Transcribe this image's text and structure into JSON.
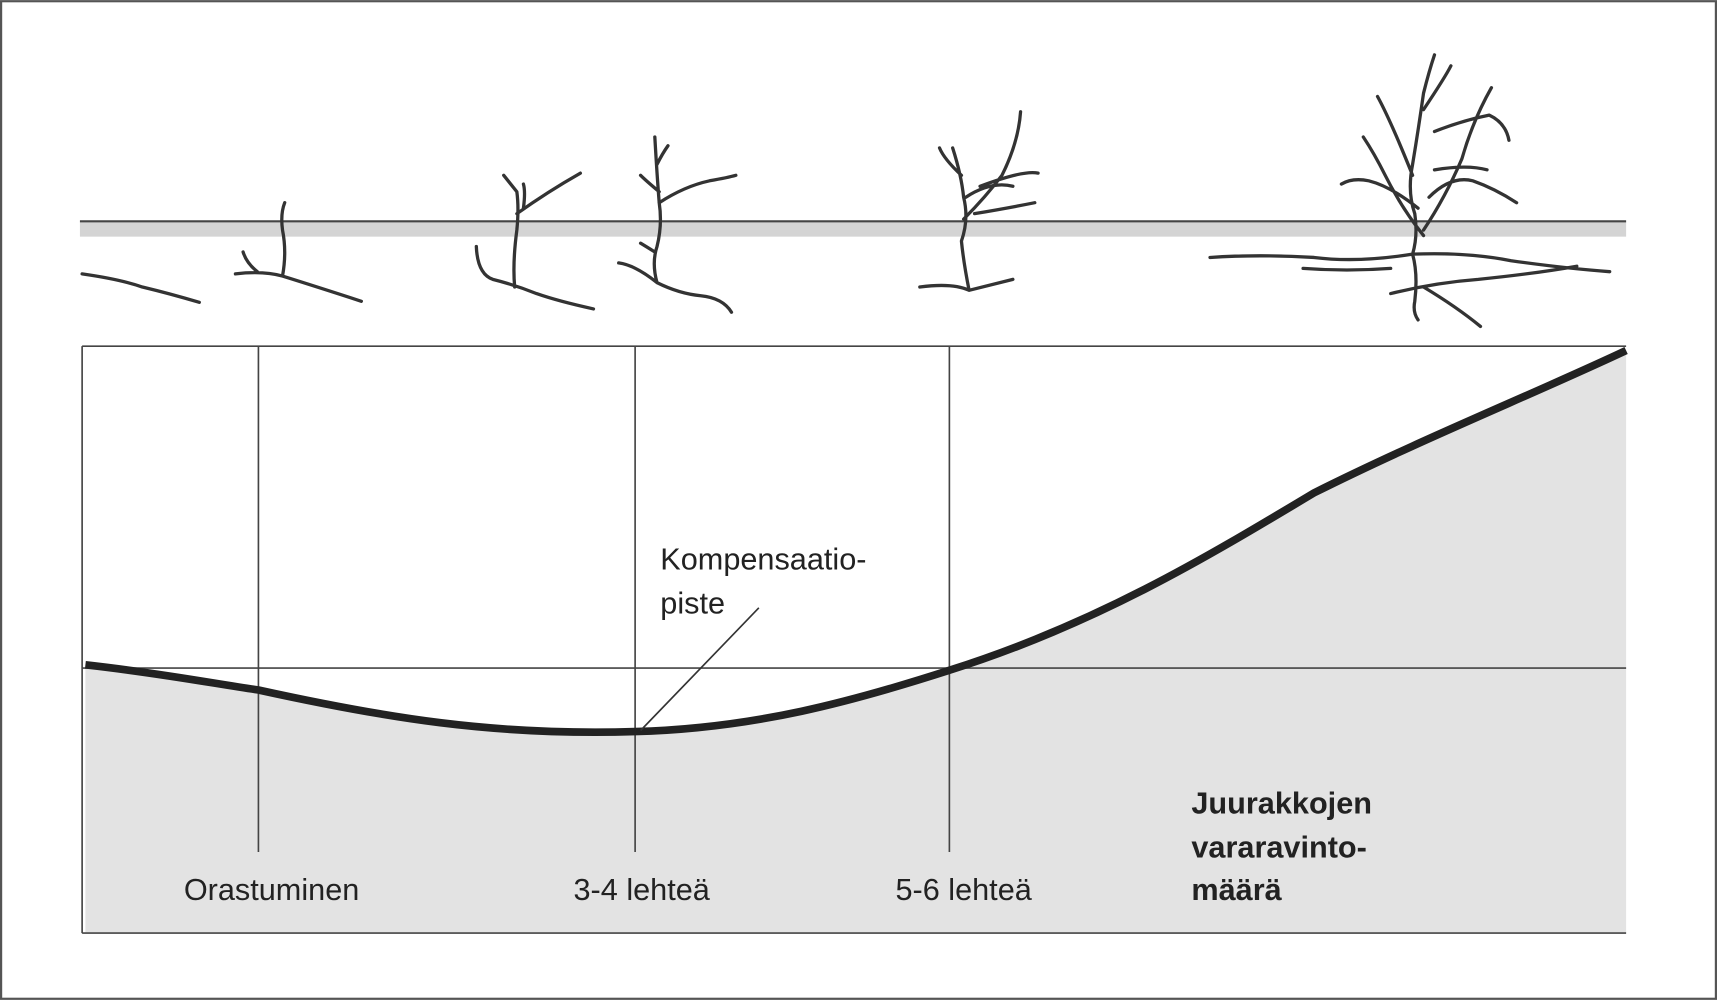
{
  "stages": [
    "Orastuminen",
    "3-4 lehteä",
    "5-6 lehteä"
  ],
  "annotation": {
    "lines": [
      "Kompensaatio-",
      "piste"
    ]
  },
  "curve_label": {
    "lines": [
      "Juurakkojen",
      "vararavinto-",
      "määrä"
    ]
  }
}
